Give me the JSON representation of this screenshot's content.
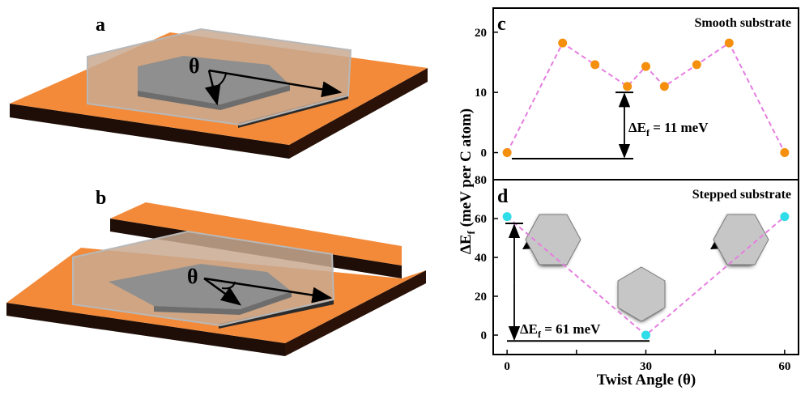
{
  "left_panels": {
    "a": {
      "label": "a",
      "angle_symbol": "θ"
    },
    "b": {
      "label": "b",
      "angle_symbol": "θ"
    }
  },
  "colors": {
    "substrate_top": "#f28a3a",
    "substrate_side": "#1e0e07",
    "flake_fill": "#c9a990",
    "inner_hex": "#8f8f8f",
    "line_dash": "#e57ee0",
    "marker_smooth": "#f5900f",
    "marker_stepped": "#2fdde8"
  },
  "chart_data": [
    {
      "type": "line",
      "panel_label": "c",
      "title": "Smooth substrate",
      "x": [
        0,
        12,
        19,
        26,
        30,
        34,
        41,
        48,
        60
      ],
      "y": [
        0,
        18.2,
        14.6,
        11,
        14.3,
        11,
        14.6,
        18.2,
        0
      ],
      "xlim": [
        -3,
        63
      ],
      "ylim": [
        -4.5,
        24
      ],
      "yticks": [
        0,
        10,
        20
      ],
      "annotation": {
        "label": "ΔEf = 11 meV",
        "from_y": -1,
        "to_y": 10,
        "at_x": 30.5,
        "text_main": "ΔE",
        "text_sub": "f",
        "text_rest": " = 11 meV"
      }
    },
    {
      "type": "line",
      "panel_label": "d",
      "title": "Stepped substrate",
      "x": [
        0,
        30,
        60
      ],
      "y": [
        61,
        0,
        61
      ],
      "xlim": [
        -3,
        63
      ],
      "ylim": [
        -10,
        80
      ],
      "yticks": [
        0,
        20,
        40,
        60,
        80
      ],
      "xticks": [
        0,
        15,
        30,
        45,
        60
      ],
      "xlabel": "Twist Angle (θ)",
      "ylabel": "ΔEf (meV per C atom)",
      "ylabel_main": "ΔE",
      "ylabel_sub": "f",
      "ylabel_rest": " (meV per C atom)",
      "annotation": {
        "label": "ΔEf = 61 meV",
        "from_y": -3,
        "to_y": 57.5,
        "at_x": 0,
        "text_main": "ΔE",
        "text_sub": "f",
        "text_rest": " = 61 meV"
      }
    }
  ]
}
